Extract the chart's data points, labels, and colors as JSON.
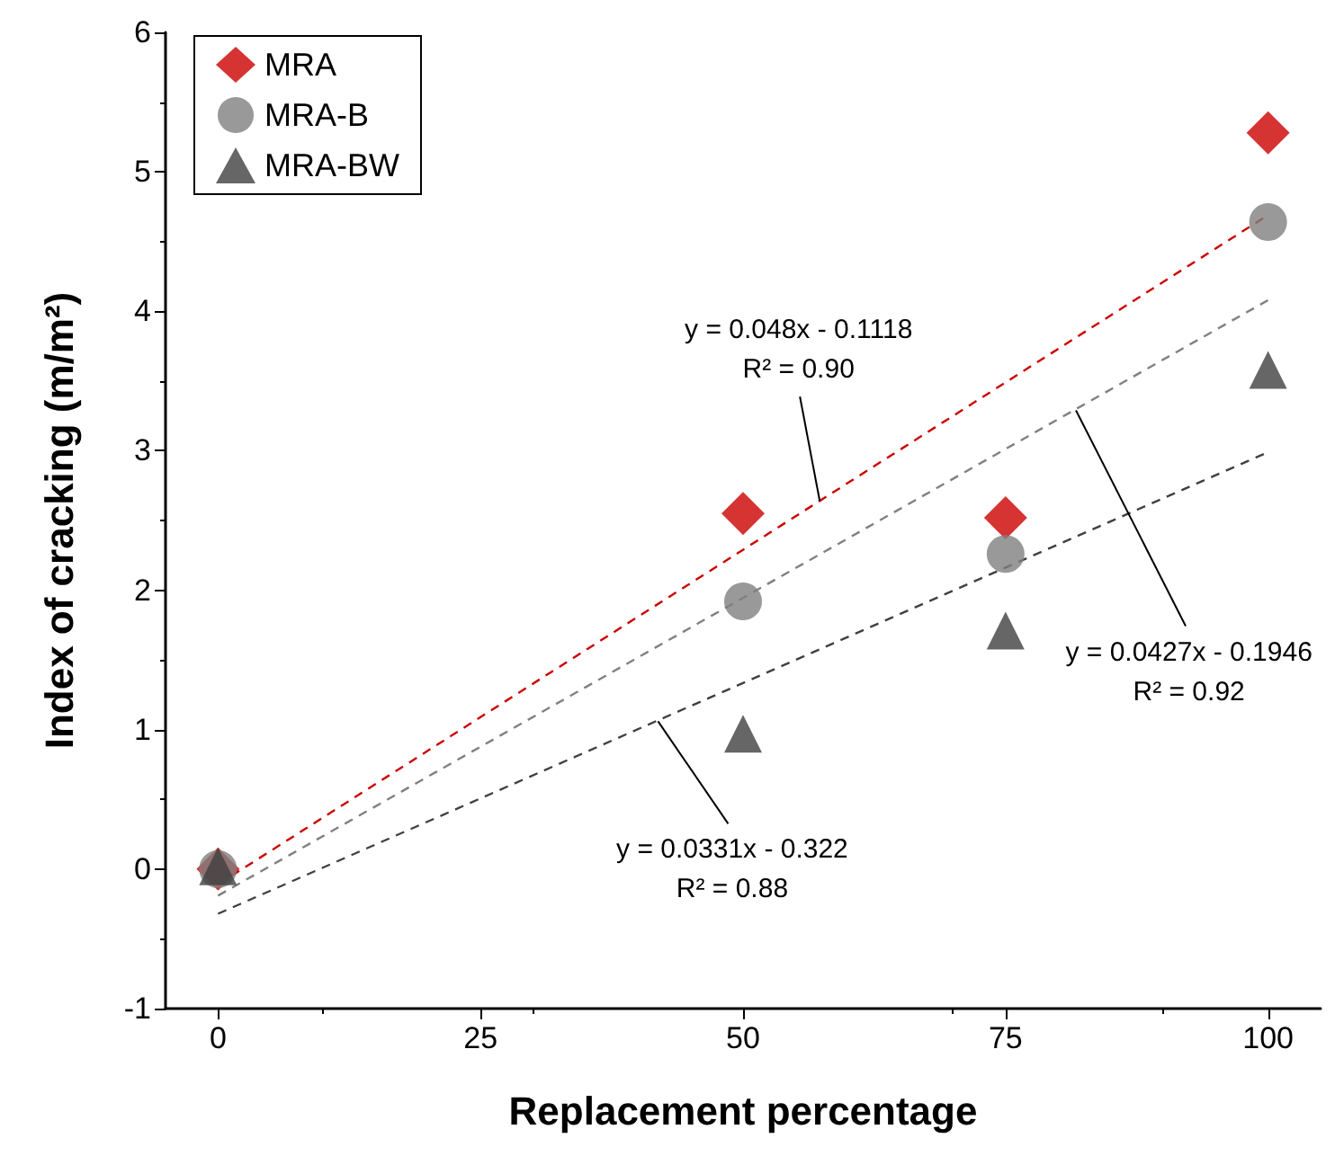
{
  "chart_data": {
    "type": "scatter",
    "xlabel": "Replacement percentage",
    "ylabel": "Index of cracking (m/m²)",
    "xlim": [
      -5,
      105
    ],
    "xticks": [
      0,
      25,
      50,
      75,
      100
    ],
    "ylim": [
      -1,
      6
    ],
    "yticks": [
      -1,
      0,
      1,
      2,
      3,
      4,
      5,
      6
    ],
    "grid": false,
    "legend": "top left",
    "series": [
      {
        "name": "MRA",
        "color": "#cc0000",
        "marker": "diamond",
        "x": [
          0,
          50,
          75,
          100
        ],
        "values": [
          0,
          2.55,
          2.52,
          5.28
        ]
      },
      {
        "name": "MRA-B",
        "color": "#808080",
        "marker": "circle",
        "x": [
          0,
          50,
          75,
          100
        ],
        "values": [
          0,
          1.92,
          2.26,
          4.64
        ]
      },
      {
        "name": "MRA-BW",
        "color": "#404040",
        "marker": "triangle",
        "x": [
          0,
          50,
          75,
          100
        ],
        "values": [
          0.02,
          0.97,
          1.71,
          3.58
        ]
      },
      {
        "type": "line",
        "color": "#cc0000",
        "line_style": "dashed",
        "marker": "none",
        "x": [
          0,
          100
        ],
        "values": [
          -0.11,
          4.69
        ]
      },
      {
        "type": "line",
        "color": "#808080",
        "line_style": "dashed",
        "marker": "none",
        "x": [
          0,
          100
        ],
        "values": [
          -0.19,
          4.08
        ]
      },
      {
        "type": "line",
        "color": "#404040",
        "line_style": "dashed",
        "marker": "none",
        "x": [
          0,
          100
        ],
        "values": [
          -0.32,
          2.99
        ]
      }
    ],
    "annotations": [
      {
        "text": "y = 0.048x - 0.1118\nR² = 0.90",
        "x": 57.3,
        "y": 2.64
      },
      {
        "text": "y = 0.0427x - 0.1946\nR² = 0.92",
        "x": 81.7,
        "y": 3.29
      },
      {
        "text": "y = 0.0331x - 0.322\nR² = 0.88",
        "x": 41.9,
        "y": 1.06
      }
    ]
  }
}
